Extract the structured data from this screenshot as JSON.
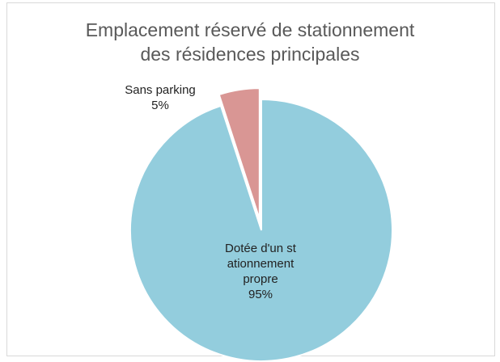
{
  "chart_data": {
    "type": "pie",
    "title": "Emplacement réservé de stationnement des résidences principales",
    "categories": [
      "Dotée d'un stationnement propre",
      "Sans parking"
    ],
    "values": [
      95,
      5
    ],
    "value_labels": [
      "95%",
      "5%"
    ],
    "colors": [
      "#93cddd",
      "#d99694"
    ],
    "exploded": [
      false,
      true
    ]
  }
}
